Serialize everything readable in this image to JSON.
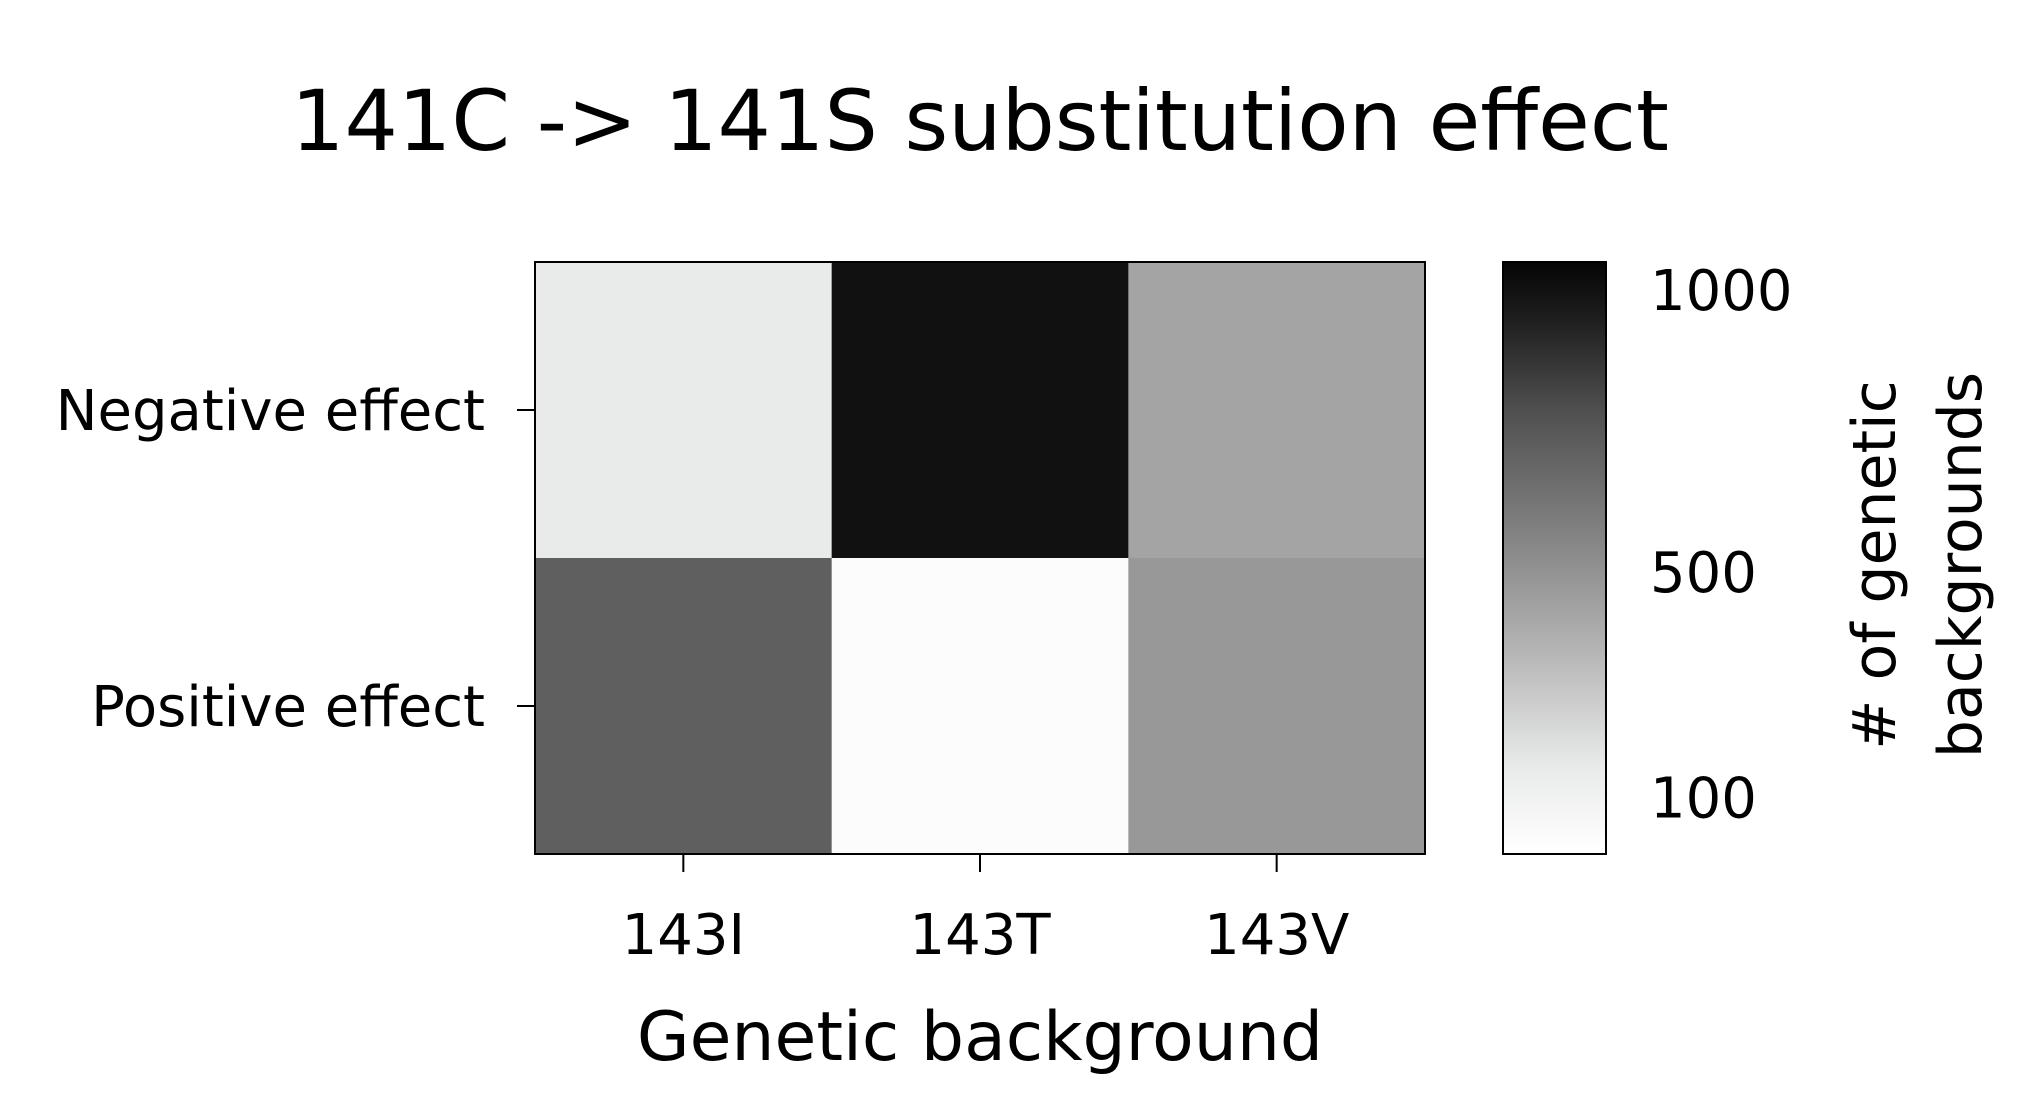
{
  "chart_data": {
    "type": "heatmap",
    "title": "141C -> 141S substitution effect",
    "xlabel": "Genetic background",
    "ylabel": "",
    "x_categories": [
      "143I",
      "143T",
      "143V"
    ],
    "y_categories": [
      "Negative effect",
      "Positive effect"
    ],
    "values": [
      [
        150,
        1000,
        430
      ],
      [
        720,
        20,
        480
      ]
    ],
    "colorbar": {
      "label_lines": [
        "# of genetic",
        "backgrounds"
      ],
      "ticks": [
        100,
        500,
        1000
      ],
      "tick_labels": [
        "100",
        "500",
        "1000"
      ],
      "range": [
        0,
        1050
      ],
      "colormap": "Greys"
    },
    "grid": false,
    "legend": "colorbar right"
  }
}
